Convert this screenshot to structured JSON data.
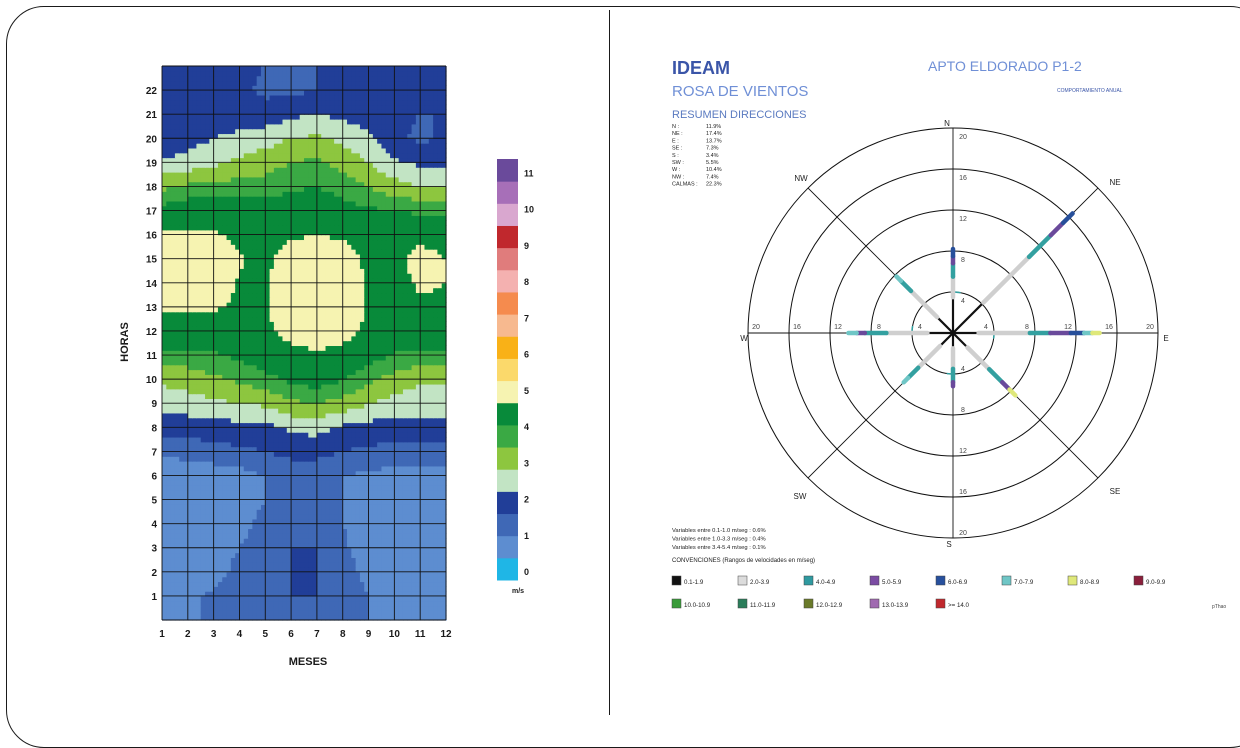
{
  "left_chart": {
    "chart_data": {
      "type": "heatmap",
      "xlabel": "MESES",
      "ylabel": "HORAS",
      "x_ticks": [
        "1",
        "2",
        "3",
        "4",
        "5",
        "6",
        "7",
        "8",
        "9",
        "10",
        "11",
        "12"
      ],
      "y_ticks": [
        "1",
        "2",
        "3",
        "4",
        "5",
        "6",
        "7",
        "8",
        "9",
        "10",
        "11",
        "12",
        "13",
        "14",
        "15",
        "16",
        "17",
        "18",
        "19",
        "20",
        "21",
        "22"
      ],
      "xlim": [
        1,
        12
      ],
      "ylim": [
        0,
        23
      ],
      "colorbar": {
        "ticks": [
          "0",
          "1",
          "2",
          "3",
          "4",
          "5",
          "6",
          "7",
          "8",
          "9",
          "10",
          "11"
        ],
        "unit": "m/s",
        "colors": [
          "#1fb6e6",
          "#5d8dd0",
          "#3f68b6",
          "#213e98",
          "#c2e4c4",
          "#8dc63f",
          "#3aa944",
          "#088a3a",
          "#f6f3b1",
          "#fbd96b",
          "#f9b117",
          "#f7b98f",
          "#f58b4e",
          "#f4b1b0",
          "#e07c7c",
          "#c0282d",
          "#d9a7cf",
          "#a76fb8",
          "#6a4a9b"
        ]
      },
      "rows": [
        {
          "hour": 0,
          "values": [
            1.0,
            1.0,
            1.0,
            1.0,
            1.0,
            1.0,
            1.0,
            1.0,
            1.0,
            1.0,
            1.0,
            1.0
          ]
        },
        {
          "hour": 1,
          "values": [
            0.5,
            0.8,
            1.2,
            1.4,
            1.5,
            1.5,
            1.5,
            1.3,
            1.0,
            0.6,
            0.5,
            0.7
          ]
        },
        {
          "hour": 2,
          "values": [
            0.5,
            0.6,
            0.6,
            1.3,
            1.4,
            1.5,
            1.5,
            1.3,
            0.8,
            0.6,
            0.6,
            0.6
          ]
        },
        {
          "hour": 3,
          "values": [
            0.5,
            0.6,
            0.6,
            1.0,
            1.3,
            1.5,
            1.5,
            1.1,
            0.7,
            0.6,
            0.6,
            0.6
          ]
        },
        {
          "hour": 4,
          "values": [
            0.5,
            0.6,
            0.6,
            0.8,
            1.2,
            1.4,
            1.4,
            1.0,
            0.7,
            0.6,
            0.6,
            0.6
          ]
        },
        {
          "hour": 5,
          "values": [
            0.5,
            0.6,
            0.6,
            0.7,
            1.0,
            1.3,
            1.3,
            1.0,
            0.7,
            0.6,
            0.6,
            0.6
          ]
        },
        {
          "hour": 6,
          "values": [
            0.6,
            0.6,
            0.7,
            0.8,
            1.0,
            1.3,
            1.3,
            1.0,
            0.9,
            0.8,
            0.8,
            0.8
          ]
        },
        {
          "hour": 7,
          "values": [
            1.1,
            1.2,
            1.3,
            1.4,
            1.5,
            1.6,
            1.6,
            1.5,
            1.4,
            1.3,
            1.3,
            1.3
          ]
        },
        {
          "hour": 8,
          "values": [
            1.7,
            1.7,
            1.8,
            1.8,
            1.8,
            2.1,
            2.2,
            1.9,
            1.8,
            1.8,
            1.8,
            1.8
          ]
        },
        {
          "hour": 9,
          "values": [
            2.2,
            2.3,
            2.4,
            2.5,
            2.6,
            2.9,
            3.0,
            2.8,
            2.5,
            2.3,
            2.2,
            2.2
          ]
        },
        {
          "hour": 10,
          "values": [
            2.6,
            2.7,
            2.9,
            3.1,
            3.3,
            3.6,
            3.8,
            3.5,
            3.1,
            2.8,
            2.6,
            2.6
          ]
        },
        {
          "hour": 11,
          "values": [
            3.3,
            3.3,
            3.4,
            3.6,
            3.9,
            4.2,
            4.3,
            4.1,
            3.8,
            3.4,
            3.3,
            3.3
          ]
        },
        {
          "hour": 12,
          "values": [
            4.0,
            4.0,
            4.1,
            4.2,
            4.3,
            4.8,
            5.2,
            4.9,
            4.2,
            4.1,
            4.0,
            4.0
          ]
        },
        {
          "hour": 13,
          "values": [
            4.6,
            4.7,
            4.6,
            4.3,
            4.4,
            5.2,
            5.6,
            5.3,
            4.4,
            4.2,
            4.4,
            4.4
          ]
        },
        {
          "hour": 14,
          "values": [
            5.3,
            5.4,
            5.2,
            4.4,
            4.3,
            5.4,
            5.7,
            5.5,
            4.3,
            4.2,
            4.6,
            4.5
          ]
        },
        {
          "hour": 15,
          "values": [
            5.3,
            5.4,
            5.3,
            4.6,
            4.2,
            5.1,
            5.4,
            5.1,
            4.2,
            4.2,
            4.9,
            4.5
          ]
        },
        {
          "hour": 16,
          "values": [
            4.6,
            4.7,
            4.6,
            4.3,
            4.1,
            4.3,
            4.5,
            4.3,
            4.1,
            4.0,
            4.2,
            4.1
          ]
        },
        {
          "hour": 17,
          "values": [
            3.7,
            3.9,
            3.9,
            3.9,
            3.8,
            3.9,
            3.9,
            3.7,
            3.6,
            3.5,
            3.4,
            3.4
          ]
        },
        {
          "hour": 18,
          "values": [
            2.9,
            3.1,
            3.2,
            3.2,
            3.2,
            3.4,
            3.5,
            3.3,
            3.0,
            2.7,
            2.5,
            2.4
          ]
        },
        {
          "hour": 19,
          "values": [
            2.1,
            2.2,
            2.4,
            2.6,
            2.8,
            3.0,
            3.1,
            2.8,
            2.5,
            2.1,
            1.9,
            1.9
          ]
        },
        {
          "hour": 20,
          "values": [
            1.5,
            1.8,
            2.0,
            2.1,
            2.3,
            2.5,
            2.6,
            2.4,
            2.1,
            1.6,
            1.4,
            1.6
          ]
        },
        {
          "hour": 21,
          "values": [
            1.5,
            1.7,
            1.8,
            1.8,
            1.7,
            1.9,
            2.0,
            1.9,
            1.7,
            1.6,
            1.5,
            1.5
          ]
        },
        {
          "hour": 22,
          "values": [
            1.5,
            1.6,
            1.6,
            1.6,
            1.4,
            1.4,
            1.5,
            1.6,
            1.6,
            1.6,
            1.6,
            1.6
          ]
        },
        {
          "hour": 23,
          "values": [
            1.5,
            1.5,
            1.6,
            1.6,
            1.5,
            1.5,
            1.5,
            1.5,
            1.6,
            1.6,
            1.6,
            1.6
          ]
        }
      ]
    }
  },
  "right_chart": {
    "header": {
      "brand": "IDEAM",
      "subtitle": "ROSA DE VIENTOS",
      "station": "APTO ELDORADO P1-2",
      "behavior": "COMPORTAMIENTO ANUAL",
      "summary_title": "RESUMEN DIRECCIONES",
      "brand_color": "#3a55a8",
      "accent_color": "#6f8fd6"
    },
    "summary": [
      {
        "dir": "N :",
        "pct": "11.9%"
      },
      {
        "dir": "NE :",
        "pct": "17.4%"
      },
      {
        "dir": "E :",
        "pct": "13.7%"
      },
      {
        "dir": "SE :",
        "pct": "7.3%"
      },
      {
        "dir": "S :",
        "pct": "3.4%"
      },
      {
        "dir": "SW :",
        "pct": "5.5%"
      },
      {
        "dir": "W :",
        "pct": "10.4%"
      },
      {
        "dir": "NW :",
        "pct": "7.4%"
      },
      {
        "dir": "CALMAS :",
        "pct": "22.3%"
      }
    ],
    "chart_data": {
      "type": "polar",
      "rmax": 20,
      "ring_labels": [
        "4",
        "8",
        "12",
        "16",
        "20"
      ],
      "axis_labels": {
        "N": "N",
        "NE": "NE",
        "E": "E",
        "SE": "SE",
        "S": "S",
        "SW": "SW",
        "W": "W",
        "NW": "NW"
      },
      "spokes": [
        {
          "dir": "N",
          "angle": 0,
          "segments": [
            [
              0,
              3.5,
              "#111111"
            ],
            [
              3.5,
              5.5,
              "#cfcfcf"
            ],
            [
              5.5,
              6.8,
              "#33a0a0"
            ],
            [
              6.8,
              7.5,
              "#6a4a9b"
            ],
            [
              7.5,
              8.2,
              "#274f9a"
            ]
          ]
        },
        {
          "dir": "NE",
          "angle": 45,
          "segments": [
            [
              0,
              4.2,
              "#111111"
            ],
            [
              4.2,
              10.5,
              "#cfcfcf"
            ],
            [
              10.5,
              13.5,
              "#33a0a0"
            ],
            [
              13.5,
              15.2,
              "#6a4a9b"
            ],
            [
              15.2,
              16.5,
              "#274f9a"
            ]
          ]
        },
        {
          "dir": "E",
          "angle": 90,
          "segments": [
            [
              0,
              2.5,
              "#111111"
            ],
            [
              2.5,
              7.5,
              "#cfcfcf"
            ],
            [
              7.5,
              9.5,
              "#33a0a0"
            ],
            [
              9.5,
              11.5,
              "#6a4a9b"
            ],
            [
              11.5,
              12.8,
              "#274f9a"
            ],
            [
              12.8,
              13.6,
              "#6fc6c6"
            ],
            [
              13.6,
              14.3,
              "#dfe87a"
            ]
          ]
        },
        {
          "dir": "SE",
          "angle": 135,
          "segments": [
            [
              0,
              2.0,
              "#111111"
            ],
            [
              2.0,
              5.0,
              "#cfcfcf"
            ],
            [
              5.0,
              6.8,
              "#33a0a0"
            ],
            [
              6.8,
              7.8,
              "#6a4a9b"
            ],
            [
              7.8,
              8.6,
              "#dfe87a"
            ]
          ]
        },
        {
          "dir": "S",
          "angle": 180,
          "segments": [
            [
              0,
              1.5,
              "#111111"
            ],
            [
              1.5,
              3.5,
              "#cfcfcf"
            ],
            [
              3.5,
              4.8,
              "#33a0a0"
            ],
            [
              4.8,
              5.2,
              "#6a4a9b"
            ]
          ]
        },
        {
          "dir": "SW",
          "angle": 225,
          "segments": [
            [
              0,
              1.8,
              "#111111"
            ],
            [
              1.8,
              4.8,
              "#cfcfcf"
            ],
            [
              4.8,
              6.2,
              "#33a0a0"
            ],
            [
              6.2,
              6.8,
              "#6fc6c6"
            ]
          ]
        },
        {
          "dir": "W",
          "angle": 270,
          "segments": [
            [
              0,
              2.5,
              "#111111"
            ],
            [
              2.5,
              6.5,
              "#cfcfcf"
            ],
            [
              6.5,
              8.6,
              "#33a0a0"
            ],
            [
              8.6,
              9.4,
              "#6a4a9b"
            ],
            [
              9.4,
              10.2,
              "#6fc6c6"
            ]
          ]
        },
        {
          "dir": "NW",
          "angle": 315,
          "segments": [
            [
              0,
              2.2,
              "#111111"
            ],
            [
              2.2,
              5.8,
              "#cfcfcf"
            ],
            [
              5.8,
              7.2,
              "#33a0a0"
            ],
            [
              7.2,
              7.8,
              "#6fc6c6"
            ]
          ]
        }
      ],
      "calm_ring": {
        "r": 4,
        "color": "#33a0a0"
      }
    },
    "variables": [
      "Variables entre 0.1-1.0 m/seg :  0.6%",
      "Variables entre 1.0-3.3 m/seg :  0.4%",
      "Variables entre 3.4-5.4 m/seg :  0.1%"
    ],
    "conventions_title": "CONVENCIONES (Rangos de velocidades en m/seg)",
    "legend_row1": [
      {
        "label": "0.1-1.9",
        "color": "#111111"
      },
      {
        "label": "2.0-3.9",
        "color": "#dcdcdc"
      },
      {
        "label": "4.0-4.9",
        "color": "#2f9aa0"
      },
      {
        "label": "5.0-5.9",
        "color": "#7b4ca3"
      },
      {
        "label": "6.0-6.9",
        "color": "#27509d"
      },
      {
        "label": "7.0-7.9",
        "color": "#6fc6c6"
      },
      {
        "label": "8.0-8.9",
        "color": "#dfe87a"
      },
      {
        "label": "9.0-9.9",
        "color": "#8a1f3b"
      }
    ],
    "legend_row2": [
      {
        "label": "10.0-10.9",
        "color": "#3a9b3a"
      },
      {
        "label": "11.0-11.9",
        "color": "#2a7d5a"
      },
      {
        "label": "12.0-12.9",
        "color": "#6a7a2a"
      },
      {
        "label": "13.0-13.9",
        "color": "#a06ab0"
      },
      {
        "label": ">= 14.0",
        "color": "#c0282d"
      }
    ],
    "footnote": "pThao"
  }
}
